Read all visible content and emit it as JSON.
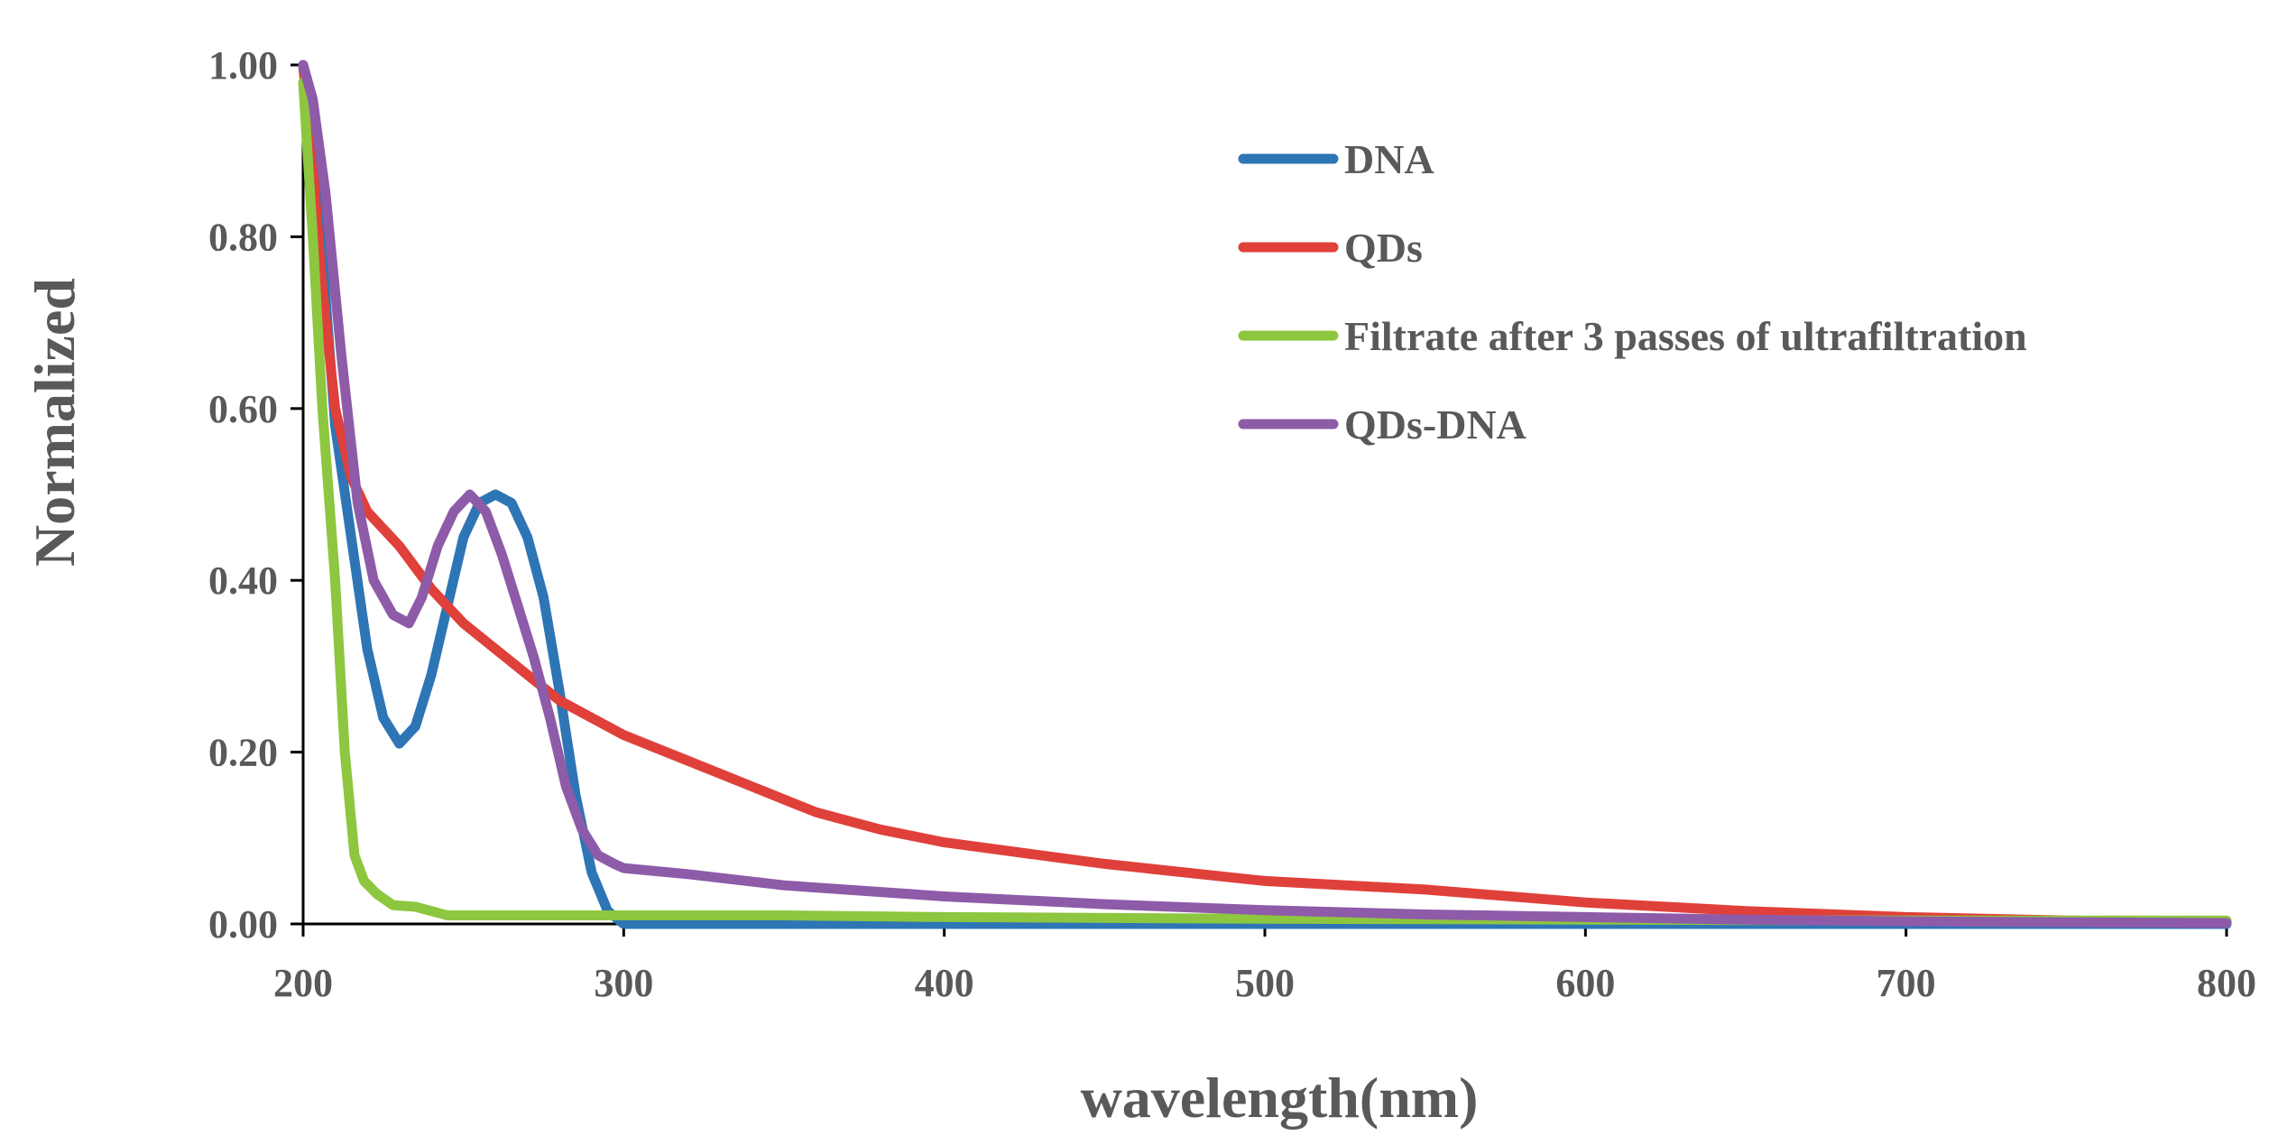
{
  "chart_data": {
    "type": "line",
    "title": "",
    "xlabel": "wavelength(nm)",
    "ylabel": "Normalized",
    "xlim": [
      200,
      800
    ],
    "ylim": [
      0,
      1
    ],
    "xticks": [
      "200",
      "300",
      "400",
      "500",
      "600",
      "700",
      "800"
    ],
    "yticks": [
      "0.00",
      "0.20",
      "0.40",
      "0.60",
      "0.80",
      "1.00"
    ],
    "grid": false,
    "legend_position": "top-right",
    "series": [
      {
        "name": "DNA",
        "color": "#2E75B6",
        "x": [
          200,
          203,
          206,
          210,
          215,
          220,
          225,
          230,
          235,
          240,
          245,
          250,
          255,
          260,
          265,
          270,
          275,
          280,
          285,
          290,
          295,
          300,
          320,
          400,
          500,
          600,
          700,
          800
        ],
        "y": [
          1.0,
          0.9,
          0.78,
          0.58,
          0.45,
          0.32,
          0.24,
          0.21,
          0.23,
          0.29,
          0.37,
          0.45,
          0.49,
          0.5,
          0.49,
          0.45,
          0.38,
          0.27,
          0.15,
          0.06,
          0.015,
          0.0,
          0.0,
          0.0,
          0.0,
          0.0,
          0.0,
          0.0
        ]
      },
      {
        "name": "QDs",
        "color": "#E0403A",
        "x": [
          200,
          203,
          206,
          210,
          215,
          220,
          230,
          240,
          250,
          260,
          270,
          280,
          300,
          320,
          340,
          350,
          360,
          380,
          400,
          450,
          500,
          550,
          600,
          650,
          700,
          750,
          800
        ],
        "y": [
          1.0,
          0.88,
          0.74,
          0.6,
          0.52,
          0.48,
          0.44,
          0.39,
          0.35,
          0.32,
          0.29,
          0.26,
          0.22,
          0.19,
          0.16,
          0.145,
          0.13,
          0.11,
          0.095,
          0.07,
          0.05,
          0.04,
          0.025,
          0.015,
          0.008,
          0.004,
          0.002
        ]
      },
      {
        "name": "Filtrate after 3 passes of ultrafiltration",
        "color": "#8DC63F",
        "x": [
          200,
          203,
          206,
          210,
          213,
          216,
          219,
          223,
          228,
          235,
          240,
          245,
          260,
          300,
          350,
          400,
          500,
          600,
          700,
          800
        ],
        "y": [
          0.98,
          0.8,
          0.6,
          0.4,
          0.2,
          0.08,
          0.05,
          0.035,
          0.022,
          0.02,
          0.015,
          0.01,
          0.01,
          0.01,
          0.01,
          0.008,
          0.006,
          0.005,
          0.004,
          0.004
        ]
      },
      {
        "name": "QDs-DNA",
        "color": "#8E5BA8",
        "x": [
          200,
          203,
          207,
          212,
          217,
          222,
          228,
          233,
          237,
          242,
          247,
          252,
          257,
          262,
          267,
          272,
          277,
          282,
          287,
          292,
          297,
          300,
          320,
          350,
          400,
          450,
          500,
          550,
          600,
          650,
          700,
          750,
          800
        ],
        "y": [
          1.0,
          0.96,
          0.85,
          0.66,
          0.49,
          0.4,
          0.36,
          0.35,
          0.38,
          0.44,
          0.48,
          0.5,
          0.48,
          0.43,
          0.37,
          0.31,
          0.24,
          0.16,
          0.11,
          0.08,
          0.07,
          0.065,
          0.058,
          0.045,
          0.032,
          0.023,
          0.016,
          0.011,
          0.008,
          0.005,
          0.003,
          0.002,
          0.001
        ]
      }
    ]
  }
}
